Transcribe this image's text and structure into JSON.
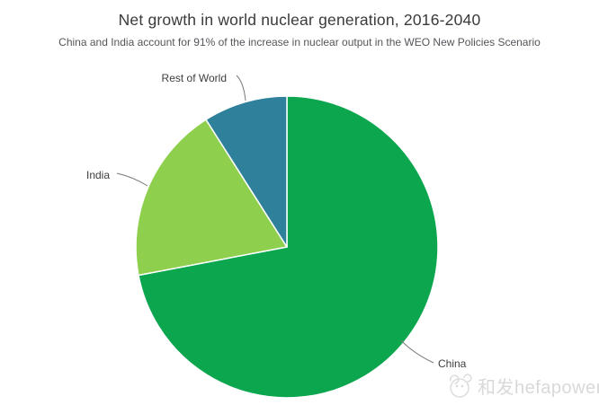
{
  "chart_data": {
    "type": "pie",
    "title": "Net growth in world nuclear generation, 2016-2040",
    "subtitle": "China and India account for 91% of the increase in nuclear output in the WEO New Policies Scenario",
    "categories": [
      "China",
      "India",
      "Rest of World"
    ],
    "values": [
      72,
      19,
      9
    ],
    "unit": "percent share of net growth (estimated from slice angles; China + India = 91% per subtitle)",
    "colors": [
      "#0ca64f",
      "#8ed04e",
      "#2f819b"
    ],
    "slice_border_color": "#ffffff",
    "start_angle": "12 o'clock",
    "direction": "clockwise",
    "legend": "none",
    "label_style": "outside labels with curved leader lines"
  },
  "watermark": {
    "icon": "logo-sketch",
    "text": "和发hefapower",
    "color": "#d9d9d9"
  },
  "palette": {
    "background": "#ffffff",
    "title_color": "#3a3a3a",
    "subtitle_color": "#53565a",
    "label_color": "#3d3d3d",
    "leader_line_color": "#787878"
  }
}
